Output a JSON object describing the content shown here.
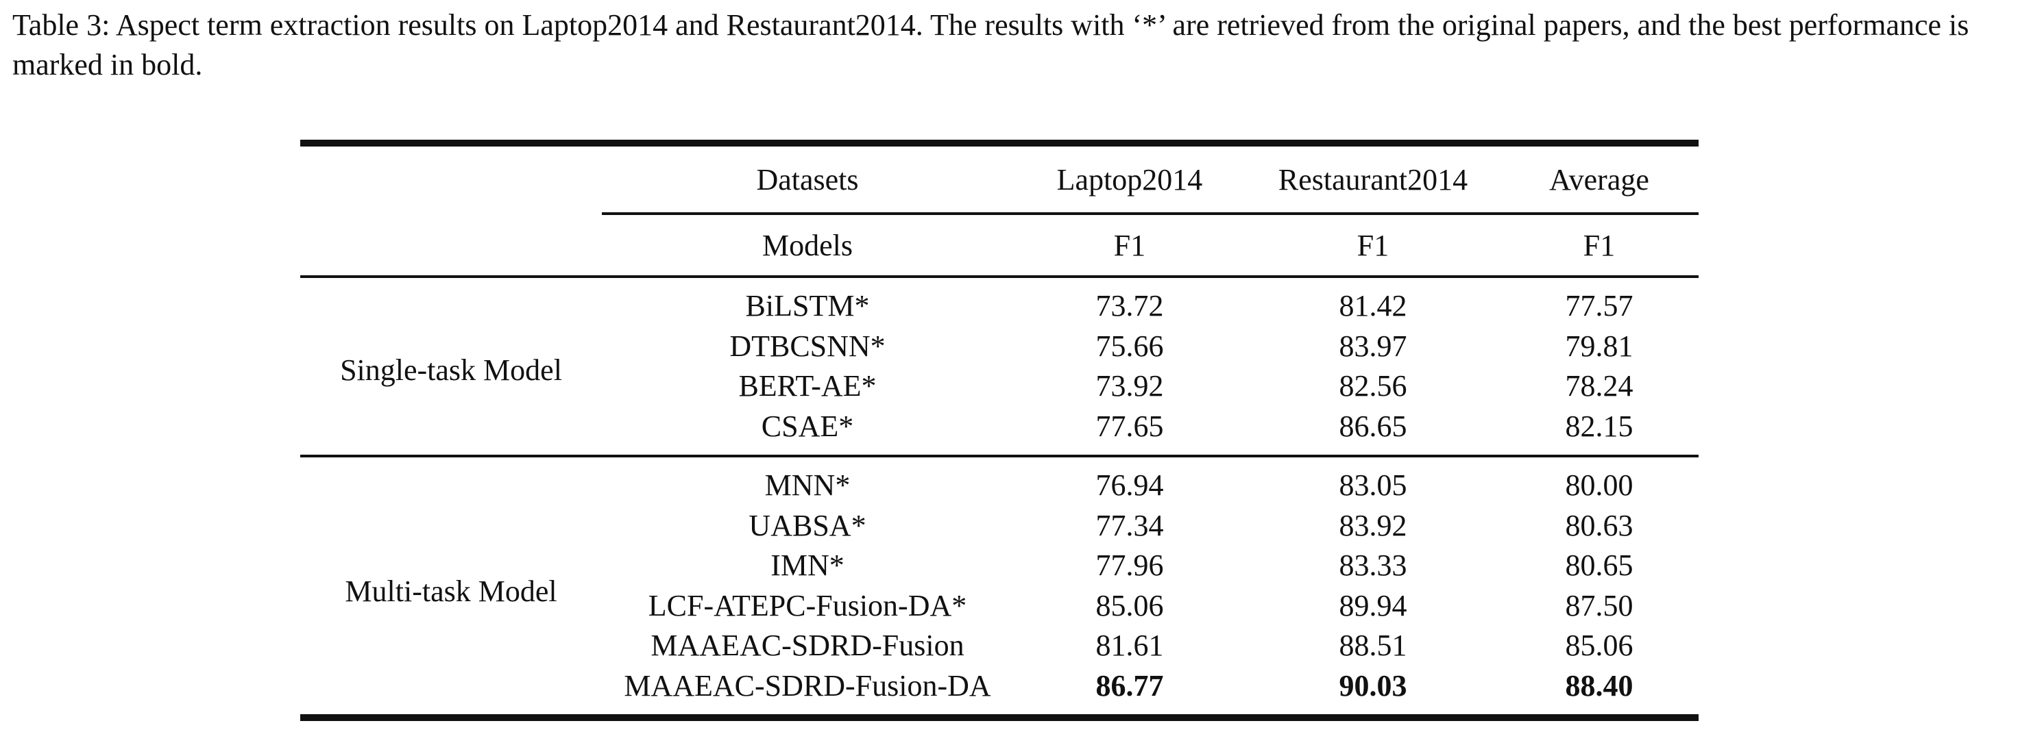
{
  "caption": "Table 3: Aspect term extraction results on Laptop2014 and Restaurant2014. The results with ‘*’ are retrieved from the original papers, and the best performance is marked in bold.",
  "table": {
    "header_row1": [
      "Datasets",
      "Laptop2014",
      "Restaurant2014",
      "Average"
    ],
    "header_row2": [
      "Models",
      "F1",
      "F1",
      "F1"
    ],
    "groups": [
      {
        "label": "Single-task Model",
        "rows": [
          {
            "model": "BiLSTM*",
            "laptop": "73.72",
            "restaurant": "81.42",
            "average": "77.57"
          },
          {
            "model": "DTBCSNN*",
            "laptop": "75.66",
            "restaurant": "83.97",
            "average": "79.81"
          },
          {
            "model": "BERT-AE*",
            "laptop": "73.92",
            "restaurant": "82.56",
            "average": "78.24"
          },
          {
            "model": "CSAE*",
            "laptop": "77.65",
            "restaurant": "86.65",
            "average": "82.15"
          }
        ]
      },
      {
        "label": "Multi-task Model",
        "rows": [
          {
            "model": "MNN*",
            "laptop": "76.94",
            "restaurant": "83.05",
            "average": "80.00"
          },
          {
            "model": "UABSA*",
            "laptop": "77.34",
            "restaurant": "83.92",
            "average": "80.63"
          },
          {
            "model": "IMN*",
            "laptop": "77.96",
            "restaurant": "83.33",
            "average": "80.65"
          },
          {
            "model": "LCF-ATEPC-Fusion-DA*",
            "laptop": "85.06",
            "restaurant": "89.94",
            "average": "87.50"
          },
          {
            "model": "MAAEAC-SDRD-Fusion",
            "laptop": "81.61",
            "restaurant": "88.51",
            "average": "85.06"
          },
          {
            "model": "MAAEAC-SDRD-Fusion-DA",
            "laptop": "86.77",
            "restaurant": "90.03",
            "average": "88.40"
          }
        ]
      }
    ]
  }
}
